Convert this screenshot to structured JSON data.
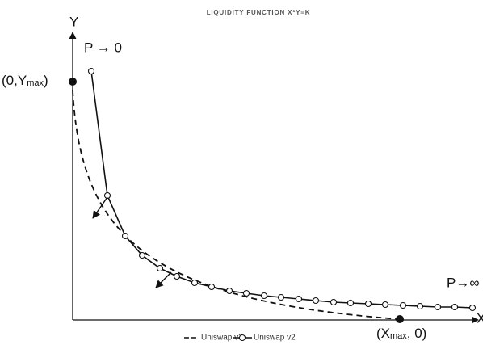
{
  "title": "LIQUIDITY FUNCTION X*Y=K",
  "axes": {
    "y": "Y",
    "x": "X"
  },
  "annotations": {
    "p_zero": "P → 0",
    "p_inf": "P→∞",
    "y_max": {
      "prefix": "(0,Y",
      "sub": "max",
      "suffix": ")"
    },
    "x_max": {
      "prefix": "(X",
      "sub": "max",
      "suffix": ", 0)"
    }
  },
  "legend": [
    "Uniswap v3",
    "Uniswap v2"
  ]
}
